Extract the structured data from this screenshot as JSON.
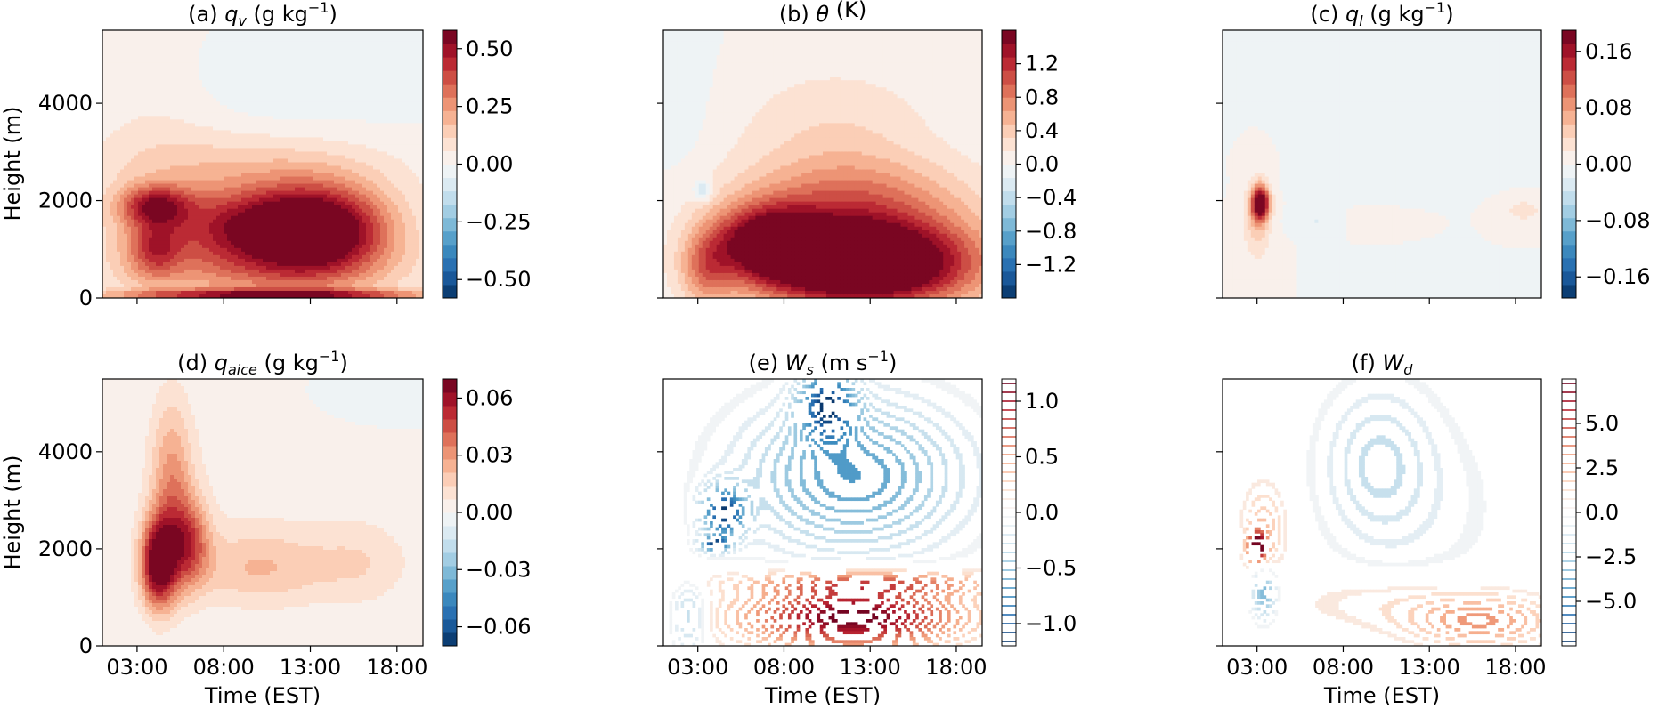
{
  "chart_data": [
    {
      "type": "heatmap",
      "panel": "(a)",
      "title_prefix": "(a) ",
      "title_var": "q",
      "title_sub": "v",
      "title_unit": " (g kg",
      "title_exp": "−1",
      "title_close": ")",
      "ylabel": "Height (m)",
      "xlabel": "",
      "yticks": [
        "0",
        "2000",
        "4000"
      ],
      "xticks": [],
      "colorbar_ticks": [
        "0.50",
        "0.25",
        "0.00",
        "−0.25",
        "−0.50"
      ],
      "clim": [
        -0.58,
        0.58
      ],
      "style": "filled",
      "xlim": [
        "01:00",
        "19:30"
      ],
      "ylim": [
        0,
        5500
      ],
      "features": [
        {
          "t": 13.5,
          "h": 1400,
          "rt": 4.0,
          "rh": 900,
          "v": 0.5
        },
        {
          "t": 9.5,
          "h": 1500,
          "rt": 6.0,
          "rh": 700,
          "v": 0.38
        },
        {
          "t": 4.0,
          "h": 1900,
          "rt": 2.0,
          "rh": 400,
          "v": 0.35
        },
        {
          "t": 4.0,
          "h": 1000,
          "rt": 1.5,
          "rh": 600,
          "v": 0.25
        },
        {
          "t": 10.0,
          "h": 600,
          "rt": 8.0,
          "rh": 700,
          "v": 0.25
        },
        {
          "t": 10.0,
          "h": 2600,
          "rt": 8.0,
          "rh": 800,
          "v": 0.15
        },
        {
          "t": 11.0,
          "h": 60,
          "rt": 9.0,
          "rh": 120,
          "v": 0.45
        },
        {
          "t": 4.0,
          "h": 3000,
          "rt": 4.0,
          "rh": 2500,
          "v": 0.06
        },
        {
          "t": 12.0,
          "h": 4500,
          "rt": 7.0,
          "rh": 1000,
          "v": -0.05
        }
      ]
    },
    {
      "type": "heatmap",
      "panel": "(b)",
      "title_prefix": "(b) ",
      "title_var": "θ",
      "title_sub": "",
      "title_unit": " (K)",
      "title_exp": "",
      "title_close": "",
      "ylabel": "",
      "xlabel": "",
      "yticks": [],
      "xticks": [],
      "colorbar_ticks": [
        "1.2",
        "0.8",
        "0.4",
        "0.0",
        "−0.4",
        "−0.8",
        "−1.2"
      ],
      "clim": [
        -1.6,
        1.6
      ],
      "style": "filled",
      "xlim": [
        "01:00",
        "19:30"
      ],
      "ylim": [
        0,
        5500
      ],
      "features": [
        {
          "t": 12.5,
          "h": 700,
          "rt": 6.5,
          "rh": 900,
          "v": 2.4
        },
        {
          "t": 7.0,
          "h": 1200,
          "rt": 3.0,
          "rh": 700,
          "v": 1.2
        },
        {
          "t": 12.0,
          "h": 2000,
          "rt": 7.0,
          "rh": 900,
          "v": 0.7
        },
        {
          "t": 11.0,
          "h": 3400,
          "rt": 6.0,
          "rh": 1400,
          "v": 0.3
        },
        {
          "t": 3.5,
          "h": 600,
          "rt": 1.5,
          "rh": 800,
          "v": 0.6
        },
        {
          "t": 3.3,
          "h": 2200,
          "rt": 0.5,
          "rh": 200,
          "v": -0.5
        },
        {
          "t": 2.0,
          "h": 4000,
          "rt": 2.0,
          "rh": 2000,
          "v": -0.1
        }
      ]
    },
    {
      "type": "heatmap",
      "panel": "(c)",
      "title_prefix": "(c) ",
      "title_var": "q",
      "title_sub": "l",
      "title_unit": " (g kg",
      "title_exp": "−1",
      "title_close": ")",
      "ylabel": "",
      "xlabel": "",
      "yticks": [],
      "xticks": [],
      "colorbar_ticks": [
        "0.16",
        "0.08",
        "0.00",
        "−0.08",
        "−0.16"
      ],
      "clim": [
        -0.19,
        0.19
      ],
      "style": "filled",
      "xlim": [
        "01:00",
        "19:30"
      ],
      "ylim": [
        0,
        5500
      ],
      "features": [
        {
          "t": 3.2,
          "h": 1950,
          "rt": 0.5,
          "rh": 350,
          "v": 0.2
        },
        {
          "t": 3.0,
          "h": 1600,
          "rt": 0.8,
          "rh": 800,
          "v": 0.05
        },
        {
          "t": 6.5,
          "h": 1600,
          "rt": 1.5,
          "rh": 200,
          "v": -0.02
        },
        {
          "t": 10.0,
          "h": 1600,
          "rt": 2.0,
          "rh": 200,
          "v": 0.015
        },
        {
          "t": 18.5,
          "h": 1800,
          "rt": 1.5,
          "rh": 300,
          "v": 0.025
        },
        {
          "t": 11.0,
          "h": 2300,
          "rt": 5.0,
          "rh": 300,
          "v": -0.01
        },
        {
          "t": 14.0,
          "h": 4500,
          "rt": 6.0,
          "rh": 1500,
          "v": -0.008
        }
      ]
    },
    {
      "type": "heatmap",
      "panel": "(d)",
      "title_prefix": "(d) ",
      "title_var": "q",
      "title_sub": "aice",
      "title_unit": " (g kg",
      "title_exp": "−1",
      "title_close": ")",
      "ylabel": "Height (m)",
      "xlabel": "Time (EST)",
      "yticks": [
        "0",
        "2000",
        "4000"
      ],
      "xticks": [
        "03:00",
        "08:00",
        "13:00",
        "18:00"
      ],
      "colorbar_ticks": [
        "0.06",
        "0.03",
        "0.00",
        "−0.03",
        "−0.06"
      ],
      "clim": [
        -0.07,
        0.07
      ],
      "style": "filled",
      "xlim": [
        "01:00",
        "19:30"
      ],
      "ylim": [
        0,
        5500
      ],
      "features": [
        {
          "t": 4.2,
          "h": 1700,
          "rt": 1.0,
          "rh": 900,
          "v": 0.07
        },
        {
          "t": 6.0,
          "h": 2100,
          "rt": 1.2,
          "rh": 900,
          "v": 0.04
        },
        {
          "t": 5.0,
          "h": 3200,
          "rt": 1.2,
          "rh": 1800,
          "v": 0.03
        },
        {
          "t": 10.0,
          "h": 1600,
          "rt": 4.0,
          "rh": 800,
          "v": 0.02
        },
        {
          "t": 16.0,
          "h": 1700,
          "rt": 3.0,
          "rh": 900,
          "v": 0.012
        },
        {
          "t": 9.0,
          "h": 3500,
          "rt": 8.0,
          "rh": 2000,
          "v": 0.004
        },
        {
          "t": 15.0,
          "h": 5000,
          "rt": 5.0,
          "rh": 800,
          "v": -0.002
        }
      ]
    },
    {
      "type": "heatmap",
      "panel": "(e)",
      "title_prefix": "(e) ",
      "title_var": "W",
      "title_sub": "s",
      "title_unit": " (m s",
      "title_exp": "−1",
      "title_close": ")",
      "ylabel": "",
      "xlabel": "Time (EST)",
      "yticks": [],
      "xticks": [
        "03:00",
        "08:00",
        "13:00",
        "18:00"
      ],
      "colorbar_ticks": [
        "1.0",
        "0.5",
        "0.0",
        "−0.5",
        "−1.0"
      ],
      "clim": [
        -1.2,
        1.2
      ],
      "style": "contour",
      "xlim": [
        "01:00",
        "19:30"
      ],
      "ylim": [
        0,
        5500
      ],
      "features": [
        {
          "t": 12.0,
          "h": 600,
          "rt": 6.0,
          "rh": 600,
          "v": 1.2
        },
        {
          "t": 13.0,
          "h": 1300,
          "rt": 7.0,
          "rh": 250,
          "v": 0.6
        },
        {
          "t": 4.5,
          "h": 2750,
          "rt": 1.2,
          "rh": 500,
          "v": -1.1
        },
        {
          "t": 4.0,
          "h": 2100,
          "rt": 0.8,
          "rh": 150,
          "v": -1.0
        },
        {
          "t": 10.5,
          "h": 5000,
          "rt": 1.5,
          "rh": 700,
          "v": -1.0
        },
        {
          "t": 12.0,
          "h": 3500,
          "rt": 6.0,
          "rh": 1500,
          "v": -0.7
        },
        {
          "t": 2.5,
          "h": 600,
          "rt": 1.0,
          "rh": 700,
          "v": -0.4
        }
      ]
    },
    {
      "type": "heatmap",
      "panel": "(f)",
      "title_prefix": "(f) ",
      "title_var": "W",
      "title_sub": "d",
      "title_unit": "",
      "title_exp": "",
      "title_close": "",
      "ylabel": "",
      "xlabel": "Time (EST)",
      "yticks": [],
      "xticks": [
        "03:00",
        "08:00",
        "13:00",
        "18:00"
      ],
      "colorbar_ticks": [
        "5.0",
        "2.5",
        "0.0",
        "−2.5",
        "−5.0"
      ],
      "clim": [
        -7.5,
        7.5
      ],
      "style": "contour",
      "xlim": [
        "01:00",
        "19:30"
      ],
      "ylim": [
        0,
        5500
      ],
      "features": [
        {
          "t": 3.0,
          "h": 2050,
          "rt": 0.5,
          "rh": 300,
          "v": 8.0
        },
        {
          "t": 3.4,
          "h": 2400,
          "rt": 1.2,
          "rh": 900,
          "v": 2.0
        },
        {
          "t": 3.4,
          "h": 1100,
          "rt": 0.7,
          "rh": 500,
          "v": -4.0
        },
        {
          "t": 16.0,
          "h": 500,
          "rt": 4.0,
          "rh": 500,
          "v": 3.0
        },
        {
          "t": 11.0,
          "h": 900,
          "rt": 6.0,
          "rh": 600,
          "v": 1.0
        },
        {
          "t": 10.0,
          "h": 3800,
          "rt": 3.0,
          "rh": 1500,
          "v": -1.8
        },
        {
          "t": 12.5,
          "h": 2800,
          "rt": 5.0,
          "rh": 2000,
          "v": -0.6
        }
      ]
    }
  ]
}
